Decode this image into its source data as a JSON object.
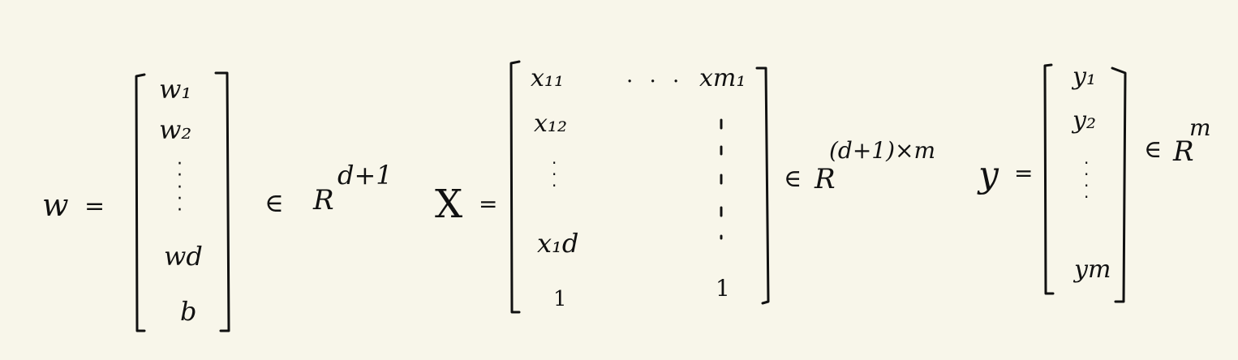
{
  "note": {
    "w_block": {
      "lhs": "w",
      "equals": "=",
      "entries": [
        "w₁",
        "w₂",
        "wd",
        "b"
      ],
      "element_of": "∈",
      "space": "R",
      "exponent": "d+1"
    },
    "X_block": {
      "lhs": "X",
      "equals": "=",
      "first_row_left": "x₁₁",
      "first_row_dots": ". . .",
      "first_row_right": "xm₁",
      "col1": [
        "x₁₂",
        "x₁d",
        "1"
      ],
      "last_col_bottom": "1",
      "element_of": "∈",
      "space": "R",
      "exponent": "(d+1)×m"
    },
    "y_block": {
      "lhs": "y",
      "equals": "=",
      "entries": [
        "y₁",
        "y₂",
        "ym"
      ],
      "element_of": "∈",
      "space": "R",
      "exponent": "m"
    }
  }
}
